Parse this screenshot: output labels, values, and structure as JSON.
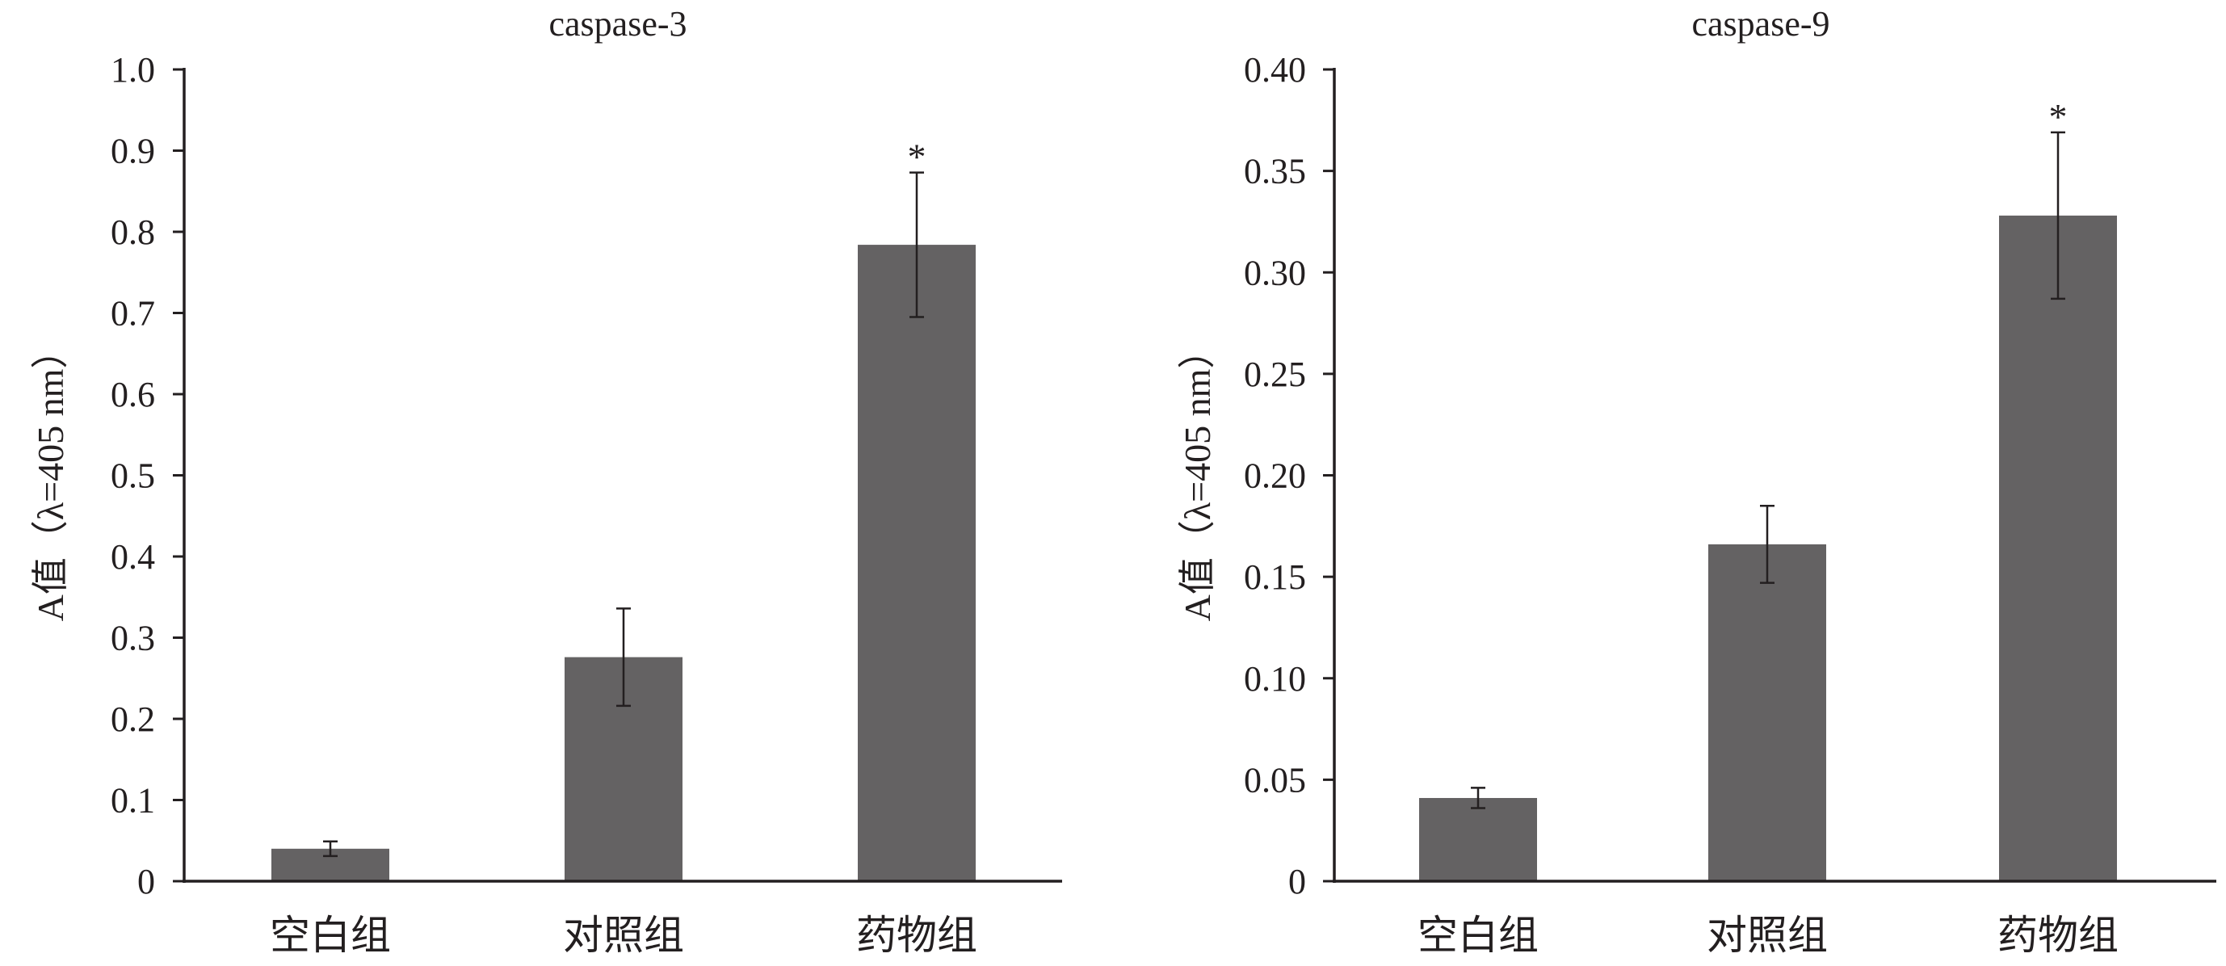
{
  "chart_data": [
    {
      "type": "bar",
      "title": "caspase-3",
      "xlabel": "",
      "ylabel": "A值（λ=405 nm）",
      "categories": [
        "空白组",
        "对照组",
        "药物组"
      ],
      "values": [
        0.04,
        0.276,
        0.784
      ],
      "errors": [
        0.009,
        0.06,
        0.089
      ],
      "annotations": [
        "",
        "",
        "*"
      ],
      "ylim": [
        0,
        1.0
      ],
      "yticks": [
        "0",
        "0.1",
        "0.2",
        "0.3",
        "0.4",
        "0.5",
        "0.6",
        "0.7",
        "0.8",
        "0.9",
        "1.0"
      ],
      "bar_color": "#646263",
      "grid": false,
      "legend": "none"
    },
    {
      "type": "bar",
      "title": "caspase-9",
      "xlabel": "",
      "ylabel": "A值（λ=405 nm）",
      "categories": [
        "空白组",
        "对照组",
        "药物组"
      ],
      "values": [
        0.041,
        0.166,
        0.328
      ],
      "errors": [
        0.005,
        0.019,
        0.041
      ],
      "annotations": [
        "",
        "",
        "*"
      ],
      "ylim": [
        0,
        0.4
      ],
      "yticks": [
        "0",
        "0.05",
        "0.10",
        "0.15",
        "0.20",
        "0.25",
        "0.30",
        "0.35",
        "0.40"
      ],
      "bar_color": "#646263",
      "grid": false,
      "legend": "none"
    }
  ]
}
